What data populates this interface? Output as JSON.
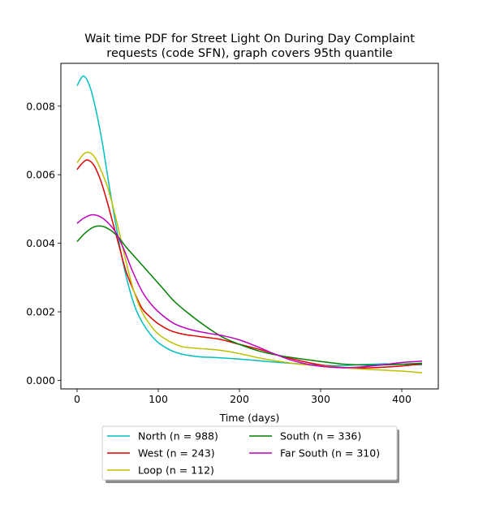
{
  "chart_data": {
    "type": "line",
    "title_line1": "Wait time PDF for Street Light On During Day Complaint",
    "title_line2": "requests (code SFN), graph covers 95th quantile",
    "xlabel": "Time (days)",
    "ylabel": "",
    "xlim": [
      -20,
      445
    ],
    "ylim": [
      -0.00025,
      0.00925
    ],
    "x_ticks": [
      0,
      100,
      200,
      300,
      400
    ],
    "x_tick_labels": [
      "0",
      "100",
      "200",
      "300",
      "400"
    ],
    "y_ticks": [
      0.0,
      0.002,
      0.004,
      0.006,
      0.008
    ],
    "y_tick_labels": [
      "0.000",
      "0.002",
      "0.004",
      "0.006",
      "0.008"
    ],
    "grid": false,
    "legend_placement": "below the plot, two columns",
    "series": [
      {
        "name": "North (n = 988)",
        "color": "#00bfbf",
        "points": [
          [
            0,
            0.0086
          ],
          [
            8,
            0.00888
          ],
          [
            16,
            0.00855
          ],
          [
            24,
            0.0078
          ],
          [
            32,
            0.0068
          ],
          [
            40,
            0.0056
          ],
          [
            48,
            0.0045
          ],
          [
            56,
            0.0035
          ],
          [
            64,
            0.0027
          ],
          [
            72,
            0.0021
          ],
          [
            80,
            0.0017
          ],
          [
            90,
            0.00135
          ],
          [
            100,
            0.0011
          ],
          [
            115,
            0.00088
          ],
          [
            130,
            0.00076
          ],
          [
            150,
            0.00069
          ],
          [
            175,
            0.00066
          ],
          [
            200,
            0.00062
          ],
          [
            225,
            0.00057
          ],
          [
            250,
            0.00052
          ],
          [
            275,
            0.00048
          ],
          [
            300,
            0.00044
          ],
          [
            325,
            0.00043
          ],
          [
            350,
            0.00046
          ],
          [
            375,
            0.00048
          ],
          [
            400,
            0.00047
          ],
          [
            425,
            0.00045
          ]
        ]
      },
      {
        "name": "West (n = 243)",
        "color": "#e00000",
        "points": [
          [
            0,
            0.00615
          ],
          [
            5,
            0.0063
          ],
          [
            12,
            0.00643
          ],
          [
            20,
            0.0063
          ],
          [
            28,
            0.0059
          ],
          [
            36,
            0.0053
          ],
          [
            44,
            0.0046
          ],
          [
            52,
            0.0039
          ],
          [
            60,
            0.0032
          ],
          [
            70,
            0.0026
          ],
          [
            80,
            0.0021
          ],
          [
            90,
            0.00185
          ],
          [
            100,
            0.00165
          ],
          [
            115,
            0.00145
          ],
          [
            130,
            0.00135
          ],
          [
            150,
            0.00128
          ],
          [
            175,
            0.0012
          ],
          [
            200,
            0.00105
          ],
          [
            225,
            0.0009
          ],
          [
            250,
            0.00072
          ],
          [
            275,
            0.00057
          ],
          [
            300,
            0.00045
          ],
          [
            325,
            0.00038
          ],
          [
            350,
            0.00036
          ],
          [
            375,
            0.00038
          ],
          [
            400,
            0.00042
          ],
          [
            425,
            0.00048
          ]
        ]
      },
      {
        "name": "Loop (n = 112)",
        "color": "#bfbf00",
        "points": [
          [
            0,
            0.00635
          ],
          [
            8,
            0.0066
          ],
          [
            15,
            0.00665
          ],
          [
            22,
            0.0065
          ],
          [
            30,
            0.0061
          ],
          [
            38,
            0.0056
          ],
          [
            46,
            0.0049
          ],
          [
            54,
            0.0041
          ],
          [
            62,
            0.0033
          ],
          [
            70,
            0.0026
          ],
          [
            80,
            0.002
          ],
          [
            90,
            0.00162
          ],
          [
            100,
            0.00135
          ],
          [
            115,
            0.00112
          ],
          [
            130,
            0.00098
          ],
          [
            150,
            0.00093
          ],
          [
            175,
            0.00088
          ],
          [
            200,
            0.00078
          ],
          [
            225,
            0.00065
          ],
          [
            250,
            0.00055
          ],
          [
            275,
            0.00047
          ],
          [
            300,
            0.00042
          ],
          [
            325,
            0.00037
          ],
          [
            350,
            0.00033
          ],
          [
            375,
            0.0003
          ],
          [
            400,
            0.00027
          ],
          [
            425,
            0.00022
          ]
        ]
      },
      {
        "name": "South (n = 336)",
        "color": "#008000",
        "points": [
          [
            0,
            0.00405
          ],
          [
            10,
            0.0043
          ],
          [
            20,
            0.00447
          ],
          [
            30,
            0.0045
          ],
          [
            40,
            0.0044
          ],
          [
            50,
            0.0042
          ],
          [
            60,
            0.0039
          ],
          [
            75,
            0.0035
          ],
          [
            90,
            0.0031
          ],
          [
            105,
            0.0027
          ],
          [
            120,
            0.0023
          ],
          [
            140,
            0.0019
          ],
          [
            160,
            0.00155
          ],
          [
            180,
            0.00125
          ],
          [
            200,
            0.00105
          ],
          [
            225,
            0.00085
          ],
          [
            250,
            0.00072
          ],
          [
            275,
            0.00063
          ],
          [
            300,
            0.00055
          ],
          [
            325,
            0.00048
          ],
          [
            350,
            0.00045
          ],
          [
            375,
            0.00045
          ],
          [
            400,
            0.00047
          ],
          [
            425,
            0.0005
          ]
        ]
      },
      {
        "name": "Far South (n = 310)",
        "color": "#bf00bf",
        "points": [
          [
            0,
            0.00458
          ],
          [
            8,
            0.00473
          ],
          [
            18,
            0.00483
          ],
          [
            28,
            0.00478
          ],
          [
            38,
            0.0046
          ],
          [
            48,
            0.0043
          ],
          [
            58,
            0.0038
          ],
          [
            68,
            0.0032
          ],
          [
            80,
            0.0026
          ],
          [
            92,
            0.0022
          ],
          [
            105,
            0.0019
          ],
          [
            120,
            0.00165
          ],
          [
            140,
            0.00148
          ],
          [
            160,
            0.00138
          ],
          [
            180,
            0.0013
          ],
          [
            200,
            0.00118
          ],
          [
            220,
            0.001
          ],
          [
            240,
            0.0008
          ],
          [
            260,
            0.00062
          ],
          [
            280,
            0.00049
          ],
          [
            300,
            0.00041
          ],
          [
            325,
            0.00037
          ],
          [
            350,
            0.00039
          ],
          [
            375,
            0.00045
          ],
          [
            400,
            0.00052
          ],
          [
            425,
            0.00056
          ]
        ]
      }
    ]
  }
}
